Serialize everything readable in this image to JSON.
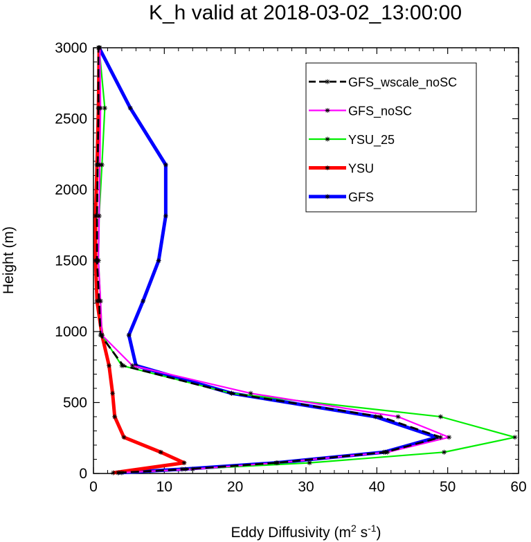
{
  "chart_data": {
    "type": "line",
    "title": "K_h valid at 2018-03-02_13:00:00",
    "xlabel": "Eddy Diffusivity (m",
    "xlabel_sup1": "2",
    "xlabel_mid": " s",
    "xlabel_sup2": "-1",
    "xlabel_end": ")",
    "ylabel": "Height (m)",
    "xlim": [
      0,
      60
    ],
    "ylim": [
      0,
      3000
    ],
    "xticks": [
      0,
      10,
      20,
      30,
      40,
      50,
      60
    ],
    "yticks": [
      0,
      500,
      1000,
      1500,
      2000,
      2500,
      3000
    ],
    "legend_position": "top-right",
    "series": [
      {
        "name": "GFS",
        "color": "#0000ff",
        "dash": "",
        "points": [
          [
            3.5,
            5
          ],
          [
            12.5,
            30
          ],
          [
            25.8,
            75
          ],
          [
            41.0,
            150
          ],
          [
            48.5,
            255
          ],
          [
            39.8,
            400
          ],
          [
            19.5,
            565
          ],
          [
            6.0,
            760
          ],
          [
            5.0,
            975
          ],
          [
            7.0,
            1215
          ],
          [
            9.2,
            1500
          ],
          [
            10.2,
            1815
          ],
          [
            10.2,
            2175
          ],
          [
            5.2,
            2575
          ],
          [
            0.8,
            3000
          ]
        ]
      },
      {
        "name": "YSU",
        "color": "#ff0000",
        "dash": "",
        "points": [
          [
            2.8,
            5
          ],
          [
            12.8,
            75
          ],
          [
            9.5,
            150
          ],
          [
            4.3,
            255
          ],
          [
            3.0,
            400
          ],
          [
            2.7,
            565
          ],
          [
            2.2,
            760
          ],
          [
            1.2,
            975
          ],
          [
            0.5,
            1215
          ],
          [
            0.3,
            1500
          ],
          [
            0.3,
            1815
          ],
          [
            0.5,
            2175
          ],
          [
            0.7,
            2575
          ],
          [
            0.8,
            3000
          ]
        ]
      },
      {
        "name": "YSU_25",
        "color": "#00ee00",
        "dash": "",
        "points": [
          [
            4.0,
            5
          ],
          [
            30.5,
            75
          ],
          [
            49.5,
            150
          ],
          [
            59.5,
            255
          ],
          [
            49.0,
            400
          ],
          [
            19.5,
            565
          ],
          [
            4.0,
            760
          ],
          [
            1.2,
            975
          ],
          [
            1.0,
            1215
          ],
          [
            0.7,
            1500
          ],
          [
            0.8,
            1815
          ],
          [
            1.2,
            2175
          ],
          [
            1.6,
            2575
          ],
          [
            0.8,
            3000
          ]
        ]
      },
      {
        "name": "GFS_noSC",
        "color": "#ff00ff",
        "dash": "",
        "points": [
          [
            3.5,
            5
          ],
          [
            14.0,
            30
          ],
          [
            26.0,
            75
          ],
          [
            41.5,
            150
          ],
          [
            50.2,
            255
          ],
          [
            43.0,
            400
          ],
          [
            22.2,
            565
          ],
          [
            5.5,
            760
          ],
          [
            1.2,
            975
          ],
          [
            1.0,
            1215
          ],
          [
            0.7,
            1500
          ],
          [
            0.8,
            1815
          ],
          [
            0.9,
            2175
          ],
          [
            1.0,
            2575
          ],
          [
            0.9,
            3000
          ]
        ]
      },
      {
        "name": "GFS_wscale_noSC",
        "color": "#000000",
        "dash": "12,6",
        "points": [
          [
            3.5,
            5
          ],
          [
            13.0,
            30
          ],
          [
            25.8,
            75
          ],
          [
            41.2,
            150
          ],
          [
            49.0,
            255
          ],
          [
            40.5,
            400
          ],
          [
            19.5,
            565
          ],
          [
            4.2,
            760
          ],
          [
            1.0,
            975
          ],
          [
            0.8,
            1215
          ],
          [
            0.5,
            1500
          ],
          [
            0.5,
            1815
          ],
          [
            0.6,
            2175
          ],
          [
            0.7,
            2575
          ],
          [
            0.7,
            3000
          ]
        ]
      }
    ],
    "legend_order": [
      "GFS_wscale_noSC",
      "GFS_noSC",
      "YSU_25",
      "YSU",
      "GFS"
    ]
  }
}
